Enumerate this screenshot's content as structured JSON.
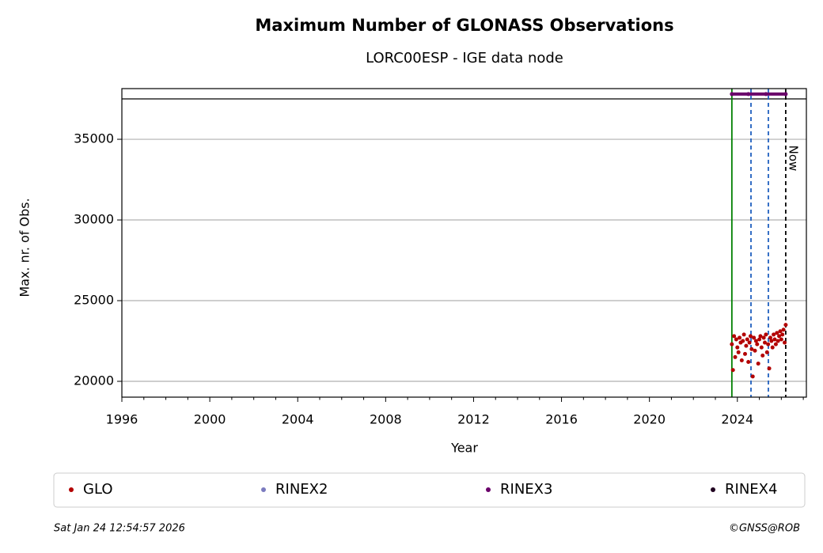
{
  "chart_data": {
    "type": "scatter",
    "title": "Maximum Number of GLONASS Observations",
    "subtitle": "LORC00ESP - IGE data node",
    "x_label": "Year",
    "y_label": "Max. nr. of Obs.",
    "xlim": [
      1996,
      2027.14
    ],
    "ylim": [
      19020,
      38140
    ],
    "xticks": [
      1996,
      2000,
      2004,
      2008,
      2012,
      2016,
      2020,
      2024
    ],
    "xminorticks": [
      1997,
      1998,
      1999,
      2001,
      2002,
      2003,
      2005,
      2006,
      2007,
      2009,
      2010,
      2011,
      2013,
      2014,
      2015,
      2017,
      2018,
      2019,
      2021,
      2022,
      2023,
      2025,
      2026,
      2027
    ],
    "yticks": [
      20000,
      25000,
      30000,
      35000
    ],
    "grid": true,
    "series": [
      {
        "name": "GLO",
        "color": "#b30000",
        "x": [
          2023.75,
          2023.8,
          2023.85,
          2023.9,
          2023.95,
          2024.0,
          2024.05,
          2024.1,
          2024.15,
          2024.2,
          2024.25,
          2024.3,
          2024.35,
          2024.4,
          2024.45,
          2024.5,
          2024.55,
          2024.6,
          2024.65,
          2024.7,
          2024.75,
          2024.8,
          2024.85,
          2024.9,
          2024.95,
          2025.0,
          2025.05,
          2025.1,
          2025.15,
          2025.2,
          2025.25,
          2025.3,
          2025.35,
          2025.4,
          2025.45,
          2025.5,
          2025.55,
          2025.6,
          2025.65,
          2025.7,
          2025.75,
          2025.8,
          2025.85,
          2025.9,
          2025.95,
          2026.0,
          2026.05,
          2026.1,
          2026.15,
          2026.2
        ],
        "values": [
          22300,
          20700,
          22800,
          21500,
          22600,
          22100,
          21800,
          22700,
          22400,
          21300,
          22500,
          22900,
          21700,
          22200,
          22600,
          21200,
          22400,
          22800,
          22000,
          20300,
          22700,
          21900,
          22500,
          22300,
          21100,
          22600,
          22800,
          22100,
          21600,
          22700,
          22400,
          22900,
          21800,
          22300,
          20800,
          22700,
          22500,
          22100,
          22900,
          22600,
          22300,
          23000,
          22500,
          22800,
          23100,
          22600,
          22900,
          23200,
          22400,
          23500
        ]
      },
      {
        "name": "RINEX2",
        "color": "#7b7bbf",
        "x": [],
        "values": []
      },
      {
        "name": "RINEX3",
        "color": "#6a006a",
        "x": [
          2023.75,
          2024.5,
          2025.3,
          2026.2
        ],
        "values": [
          37800,
          37800,
          37800,
          37800
        ]
      },
      {
        "name": "RINEX4",
        "color": "#200020",
        "x": [],
        "values": []
      }
    ],
    "vlines": [
      {
        "x": 2023.75,
        "color": "#008000",
        "dash": false
      },
      {
        "x": 2024.62,
        "color": "#1f5fbf",
        "dash": true
      },
      {
        "x": 2025.41,
        "color": "#1f5fbf",
        "dash": true
      },
      {
        "x": 2026.2,
        "color": "#000000",
        "dash": true,
        "label": "Now"
      }
    ],
    "footer_left": "Sat Jan 24 12:54:57 2026",
    "footer_right": "©GNSS@ROB"
  }
}
